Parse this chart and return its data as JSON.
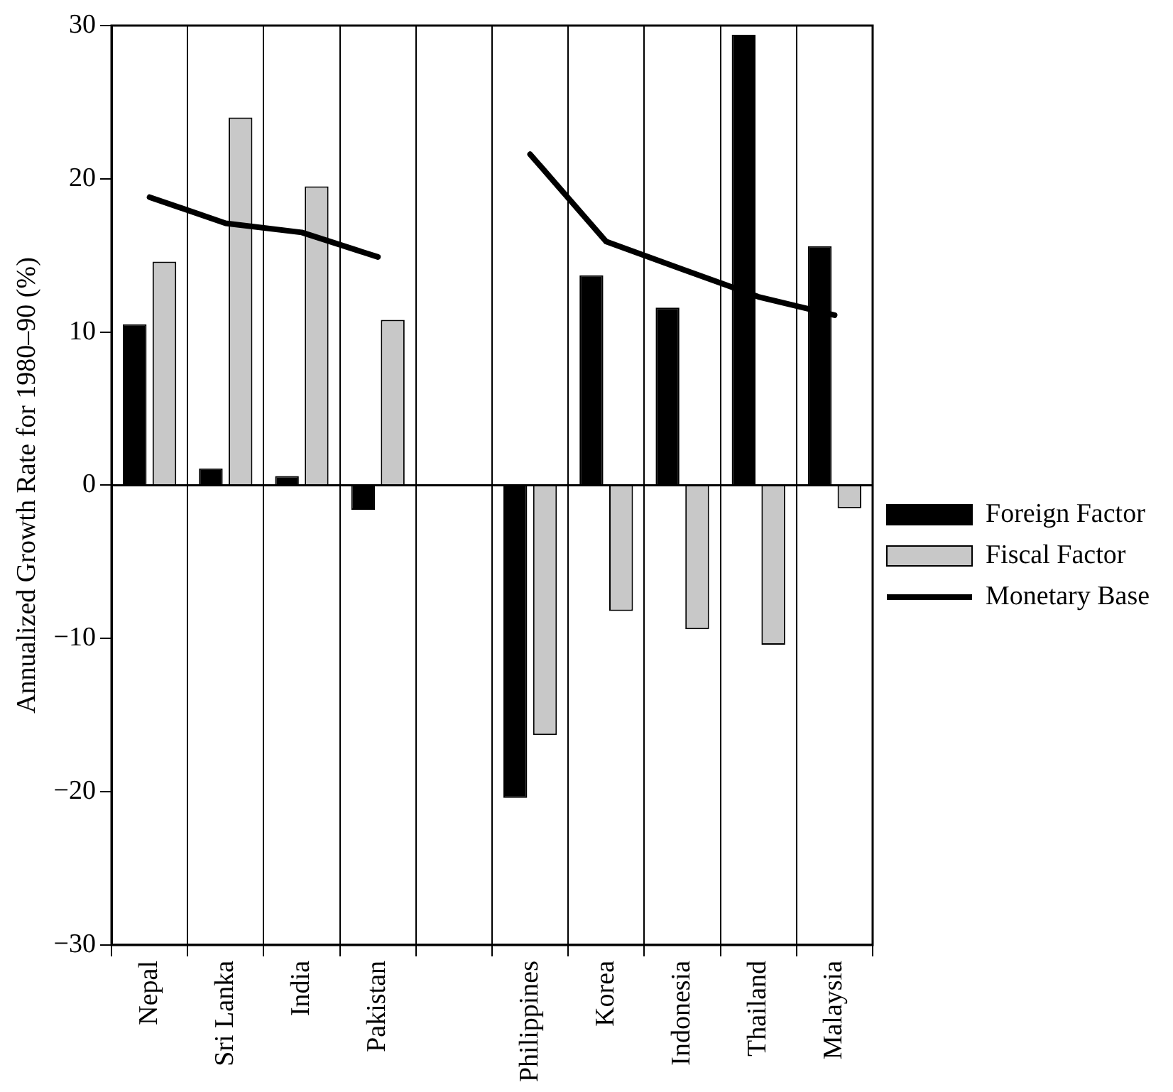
{
  "chart_data": {
    "type": "bar",
    "ylabel": "Annualized Growth Rate for 1980–90 (%)",
    "categories": [
      "Nepal",
      "Sri Lanka",
      "India",
      "Pakistan",
      null,
      "Philippines",
      "Korea",
      "Indonesia",
      "Thailand",
      "Malaysia"
    ],
    "series": [
      {
        "name": "Foreign Factor",
        "color": "#000000",
        "values": [
          10.5,
          1.1,
          0.6,
          -1.6,
          null,
          -20.4,
          13.7,
          11.6,
          29.4,
          15.6
        ]
      },
      {
        "name": "Fiscal Factor",
        "color": "#c8c8c8",
        "values": [
          14.6,
          24.0,
          19.5,
          10.8,
          null,
          -16.3,
          -8.2,
          -9.4,
          -10.4,
          -1.5
        ]
      },
      {
        "name": "Monetary Base",
        "type": "line",
        "color": "#000000",
        "marker": "none",
        "values": [
          18.8,
          17.1,
          16.5,
          14.9,
          null,
          21.6,
          15.9,
          14.1,
          12.3,
          11.1
        ]
      }
    ],
    "ylim": [
      -30,
      30
    ],
    "yticks": [
      -30,
      -20,
      -10,
      0,
      10,
      20,
      30
    ],
    "grid": "x",
    "legend": "right"
  }
}
